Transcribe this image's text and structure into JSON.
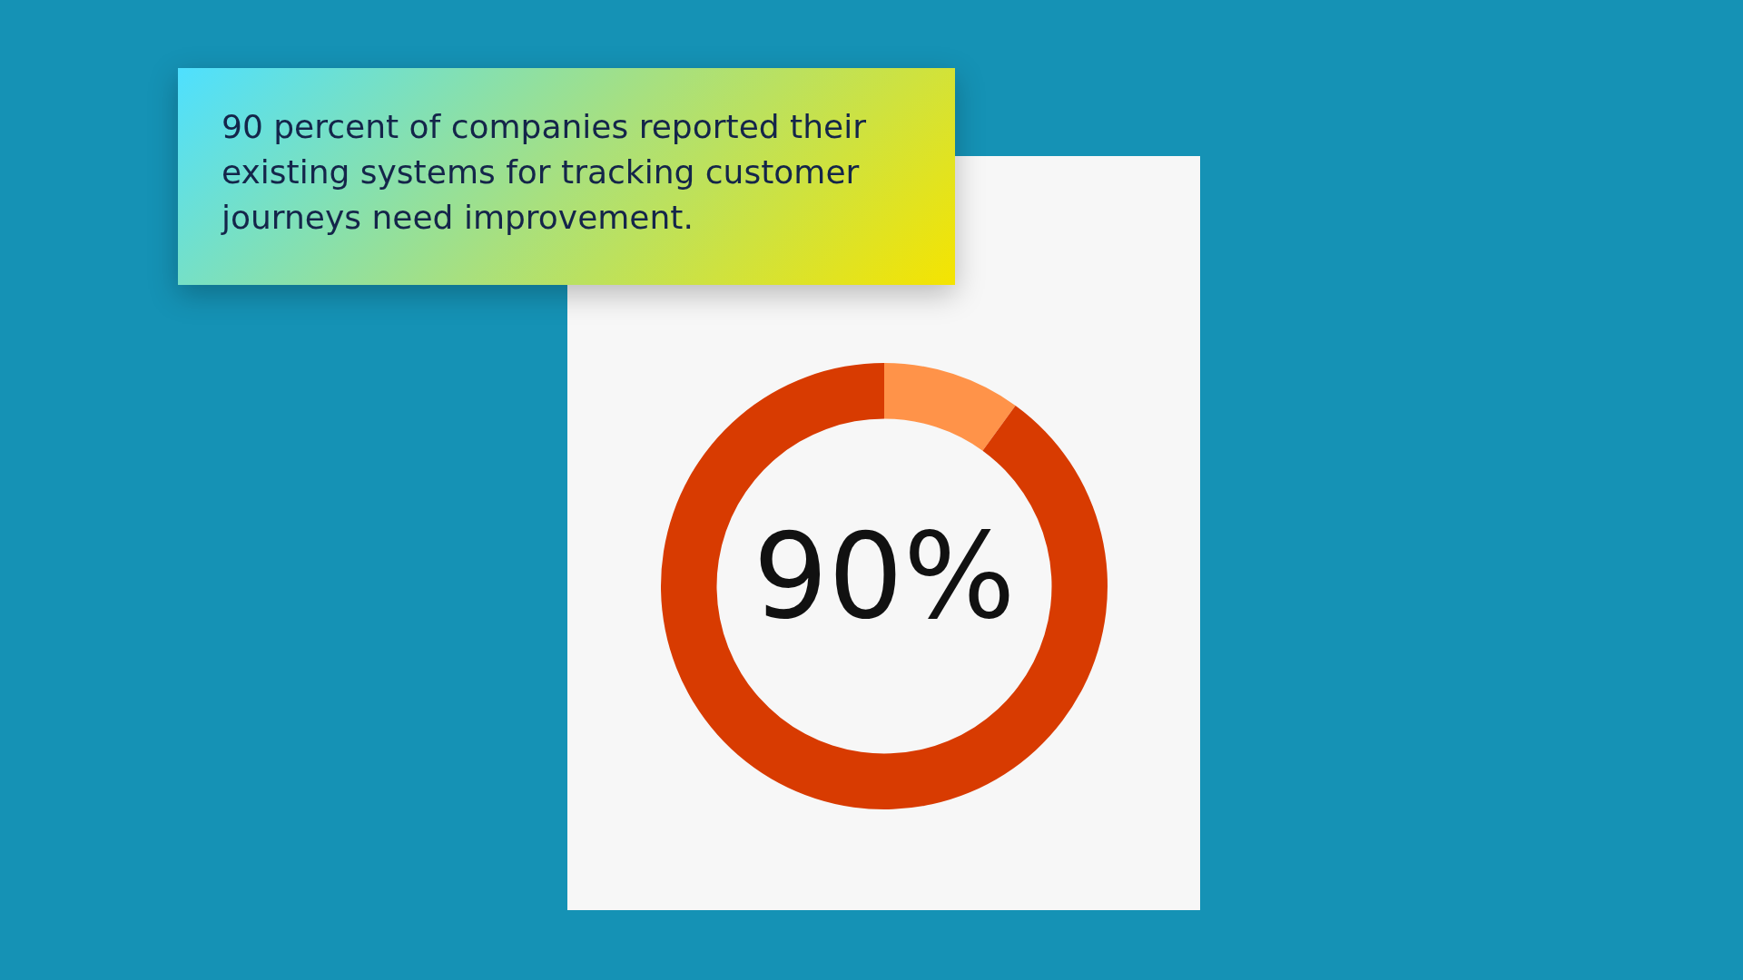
{
  "chart_data": {
    "type": "donut",
    "title": "90 percent of companies reported their existing systems for tracking customer journeys need improvement.",
    "categories": [
      null,
      null
    ],
    "values": [
      10,
      90
    ],
    "colors": [
      "#ff9349",
      "#d83b01"
    ],
    "value_labels": [
      null,
      "90%"
    ]
  }
}
